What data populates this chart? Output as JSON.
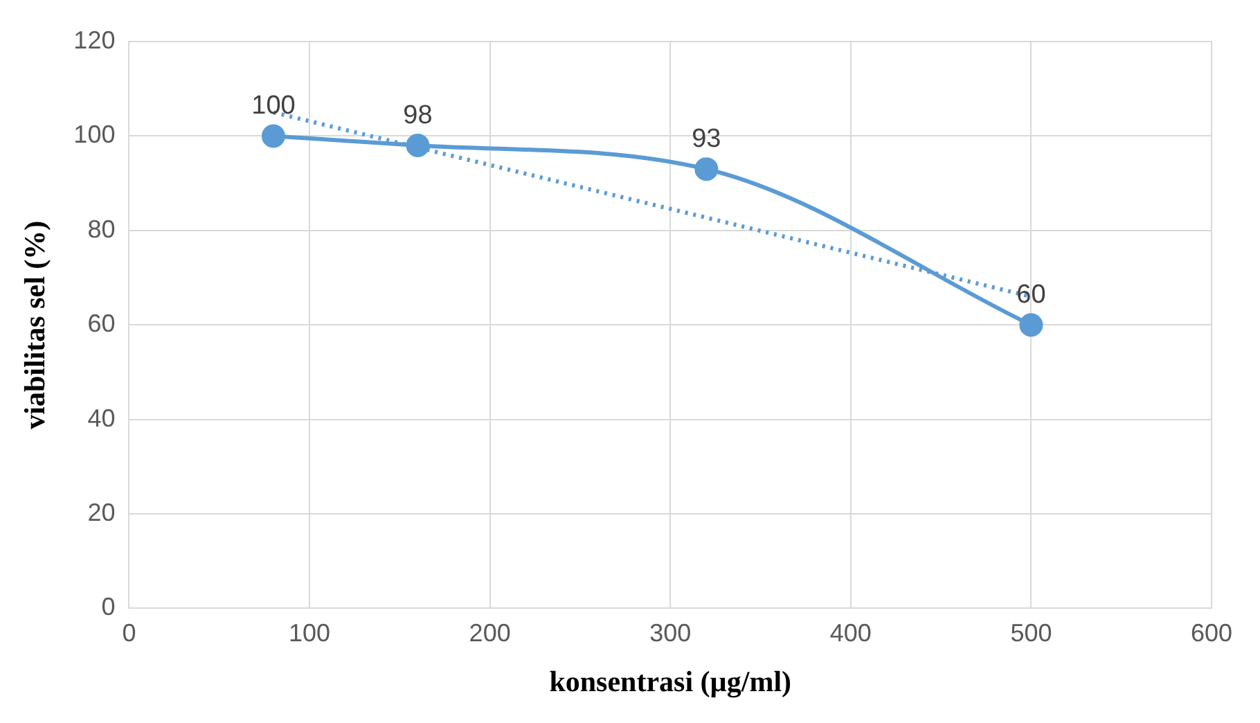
{
  "chart_data": {
    "type": "line",
    "xlabel": "konsentrasi (µg/ml)",
    "ylabel": "viabilitas sel (%)",
    "xlim": [
      0,
      600
    ],
    "xticks": [
      0,
      100,
      200,
      300,
      400,
      500,
      600
    ],
    "ylim": [
      0,
      120
    ],
    "yticks": [
      0,
      20,
      40,
      60,
      80,
      100,
      120
    ],
    "grid": true,
    "legend": false,
    "series": [
      {
        "x": [
          80,
          160,
          320,
          500
        ],
        "values": [
          100,
          98,
          93,
          60
        ],
        "value_labels": [
          "100",
          "98",
          "93",
          "60"
        ],
        "color": "#5b9bd5",
        "marker": "circle",
        "line_style": "solid"
      },
      {
        "type": "line",
        "x": [
          80,
          500
        ],
        "values": [
          105,
          66
        ],
        "color": "#5b9bd5",
        "marker": "none",
        "line_style": "dotted"
      }
    ]
  }
}
